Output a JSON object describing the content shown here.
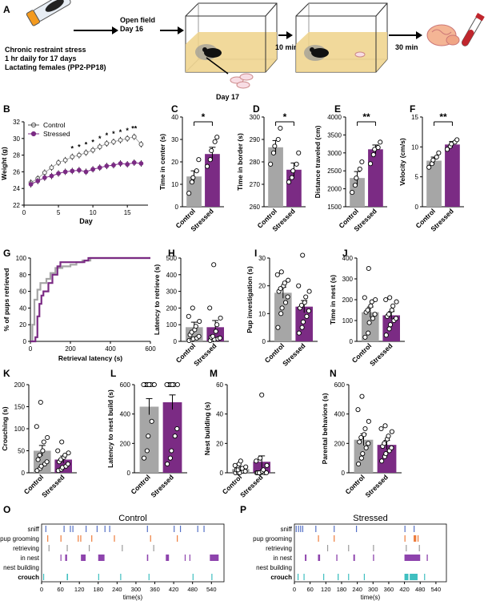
{
  "colors": {
    "control": "#a6a6a6",
    "stressed": "#7b2b84",
    "sniff": "#5470c6",
    "pup_grooming": "#ee7d3c",
    "retrieving": "#9b9b9b",
    "in_nest": "#8e44ad",
    "crouch": "#3fbfc0"
  },
  "panelA": {
    "letter": "A",
    "text_lines": [
      "Chronic restraint stress",
      "1 hr daily for 17 days",
      "Lactating females (PP2-PP18)"
    ],
    "open_field": [
      "Open field",
      "Day 16"
    ],
    "day17": "Day 17",
    "arrow1": "10 min",
    "arrow2": "30 min"
  },
  "chart_data": [
    {
      "id": "B",
      "letter": "B",
      "type": "line",
      "xlabel": "Day",
      "ylabel": "Weight (g)",
      "xlim": [
        0,
        18
      ],
      "ylim": [
        22,
        32
      ],
      "xticks": [
        0,
        5,
        10,
        15
      ],
      "yticks": [
        22,
        24,
        26,
        28,
        30,
        32
      ],
      "legend": [
        "Control",
        "Stressed"
      ],
      "x": [
        1,
        2,
        3,
        4,
        5,
        6,
        7,
        8,
        9,
        10,
        11,
        12,
        13,
        14,
        15,
        16,
        17
      ],
      "series": [
        {
          "name": "Control",
          "values": [
            24.7,
            25.2,
            25.9,
            26.5,
            27.1,
            27.4,
            27.8,
            28.0,
            28.3,
            28.6,
            29.0,
            29.4,
            29.6,
            29.8,
            30.0,
            30.2,
            29.3
          ]
        },
        {
          "name": "Stressed",
          "values": [
            24.5,
            24.9,
            25.3,
            25.5,
            25.8,
            26.0,
            26.1,
            26.2,
            26.0,
            26.3,
            26.5,
            26.7,
            26.8,
            27.0,
            26.9,
            27.1,
            27.0
          ]
        }
      ],
      "significance": [
        {
          "x": 7,
          "label": "*"
        },
        {
          "x": 8,
          "label": "*"
        },
        {
          "x": 9,
          "label": "*"
        },
        {
          "x": 10,
          "label": "*"
        },
        {
          "x": 11,
          "label": "*"
        },
        {
          "x": 12,
          "label": "*"
        },
        {
          "x": 13,
          "label": "*"
        },
        {
          "x": 14,
          "label": "*"
        },
        {
          "x": 15,
          "label": "*"
        },
        {
          "x": 16,
          "label": "**"
        }
      ]
    },
    {
      "id": "C",
      "letter": "C",
      "type": "bar",
      "ylabel": "Time in center (s)",
      "ylim": [
        0,
        40
      ],
      "yticks": [
        0,
        10,
        20,
        30,
        40
      ],
      "categories": [
        "Control",
        "Stressed"
      ],
      "values": [
        13.5,
        23.5
      ],
      "errors": [
        2.5,
        3.0
      ],
      "points": [
        [
          6,
          11,
          13,
          16,
          21
        ],
        [
          18,
          21,
          25,
          29,
          31
        ]
      ],
      "significance": "*"
    },
    {
      "id": "D",
      "letter": "D",
      "type": "bar",
      "ylabel": "Time in border (s)",
      "ylim": [
        260,
        300
      ],
      "yticks": [
        260,
        270,
        280,
        290,
        300
      ],
      "categories": [
        "Control",
        "Stressed"
      ],
      "values": [
        286.5,
        276.5
      ],
      "errors": [
        3.0,
        3.0
      ],
      "points": [
        [
          279,
          284,
          287,
          290,
          295
        ],
        [
          271,
          273,
          276,
          279,
          284
        ]
      ],
      "significance": "*"
    },
    {
      "id": "E",
      "letter": "E",
      "type": "bar",
      "ylabel": "Distance traveled (cm)",
      "ylim": [
        1500,
        4000
      ],
      "yticks": [
        1500,
        2000,
        2500,
        3000,
        3500,
        4000
      ],
      "categories": [
        "Control",
        "Stressed"
      ],
      "values": [
        2300,
        3100
      ],
      "errors": [
        180,
        120
      ],
      "points": [
        [
          1900,
          2100,
          2300,
          2550,
          2750
        ],
        [
          2700,
          2950,
          3100,
          3150,
          3300
        ]
      ],
      "significance": "**"
    },
    {
      "id": "F",
      "letter": "F",
      "type": "bar",
      "ylabel": "Velocity (cm/s)",
      "ylim": [
        0,
        15
      ],
      "yticks": [
        0,
        5,
        10,
        15
      ],
      "categories": [
        "Control",
        "Stressed"
      ],
      "values": [
        7.7,
        10.4
      ],
      "errors": [
        0.6,
        0.5
      ],
      "points": [
        [
          6.6,
          7.2,
          7.8,
          8.3,
          9.0
        ],
        [
          9.6,
          10.1,
          10.5,
          10.8,
          11.2
        ]
      ],
      "significance": "**"
    },
    {
      "id": "G",
      "letter": "G",
      "type": "line",
      "xlabel": "Retrieval latency (s)",
      "ylabel": "% of pups retrieved",
      "xlim": [
        0,
        600
      ],
      "ylim": [
        0,
        100
      ],
      "xticks": [
        0,
        200,
        400,
        600
      ],
      "yticks": [
        0,
        20,
        40,
        60,
        80,
        100
      ],
      "series": [
        {
          "name": "Control",
          "steps": [
            [
              0,
              0
            ],
            [
              10,
              20
            ],
            [
              20,
              50
            ],
            [
              35,
              62
            ],
            [
              50,
              70
            ],
            [
              80,
              75
            ],
            [
              100,
              82
            ],
            [
              125,
              88
            ],
            [
              160,
              90
            ],
            [
              200,
              92
            ],
            [
              230,
              95
            ],
            [
              260,
              97
            ],
            [
              300,
              100
            ],
            [
              600,
              100
            ]
          ]
        },
        {
          "name": "Stressed",
          "steps": [
            [
              0,
              0
            ],
            [
              25,
              5
            ],
            [
              35,
              30
            ],
            [
              45,
              45
            ],
            [
              55,
              55
            ],
            [
              65,
              60
            ],
            [
              90,
              70
            ],
            [
              110,
              80
            ],
            [
              135,
              90
            ],
            [
              150,
              95
            ],
            [
              270,
              97
            ],
            [
              290,
              100
            ],
            [
              600,
              100
            ]
          ]
        }
      ]
    },
    {
      "id": "H",
      "letter": "H",
      "type": "bar",
      "ylabel": "Latency to retrieve (s)",
      "ylim": [
        0,
        500
      ],
      "yticks": [
        0,
        100,
        200,
        300,
        400,
        500
      ],
      "categories": [
        "Control",
        "Stressed"
      ],
      "values": [
        85,
        85
      ],
      "errors": [
        30,
        40
      ],
      "points": [
        [
          5,
          10,
          15,
          20,
          30,
          40,
          55,
          70,
          90,
          120,
          150,
          200
        ],
        [
          5,
          10,
          12,
          15,
          20,
          25,
          30,
          60,
          100,
          140,
          200,
          460
        ]
      ]
    },
    {
      "id": "I",
      "letter": "I",
      "type": "bar",
      "ylabel": "Pup investigation (s)",
      "ylim": [
        0,
        30
      ],
      "yticks": [
        0,
        10,
        20,
        30
      ],
      "categories": [
        "Control",
        "Stressed"
      ],
      "values": [
        17.5,
        12.5
      ],
      "errors": [
        2.0,
        2.2
      ],
      "points": [
        [
          5,
          10,
          12,
          14,
          16,
          18,
          19,
          20,
          21,
          22,
          24,
          25
        ],
        [
          3,
          5,
          7,
          9,
          11,
          12,
          13,
          14,
          16,
          18,
          20,
          31
        ]
      ]
    },
    {
      "id": "J",
      "letter": "J",
      "type": "bar",
      "ylabel": "Time in nest (s)",
      "ylim": [
        0,
        400
      ],
      "yticks": [
        0,
        100,
        200,
        300,
        400
      ],
      "categories": [
        "Control",
        "Stressed"
      ],
      "values": [
        140,
        125
      ],
      "errors": [
        25,
        18
      ],
      "points": [
        [
          20,
          40,
          90,
          110,
          130,
          140,
          150,
          170,
          190,
          200,
          210,
          350
        ],
        [
          30,
          60,
          80,
          100,
          110,
          120,
          130,
          150,
          170,
          190,
          200,
          210
        ]
      ]
    },
    {
      "id": "K",
      "letter": "K",
      "type": "bar",
      "ylabel": "Crouching (s)",
      "ylim": [
        0,
        200
      ],
      "yticks": [
        0,
        50,
        100,
        150,
        200
      ],
      "categories": [
        "Control",
        "Stressed"
      ],
      "values": [
        50,
        30
      ],
      "errors": [
        12,
        8
      ],
      "points": [
        [
          5,
          10,
          15,
          20,
          25,
          30,
          40,
          50,
          70,
          80,
          105,
          160
        ],
        [
          5,
          8,
          12,
          15,
          20,
          25,
          30,
          35,
          40,
          45,
          50,
          70
        ]
      ]
    },
    {
      "id": "L",
      "letter": "L",
      "type": "bar",
      "ylabel": "Latency to nest build (s)",
      "ylim": [
        0,
        600
      ],
      "yticks": [
        0,
        200,
        400,
        600
      ],
      "categories": [
        "Control",
        "Stressed"
      ],
      "values": [
        450,
        480
      ],
      "errors": [
        55,
        50
      ],
      "points": [
        [
          100,
          150,
          250,
          350,
          600,
          600,
          600,
          600,
          600,
          600,
          600,
          600,
          600
        ],
        [
          60,
          100,
          150,
          250,
          300,
          600,
          600,
          600,
          600,
          600,
          600,
          600,
          600
        ]
      ]
    },
    {
      "id": "M",
      "letter": "M",
      "type": "bar",
      "ylabel": "Nest building (s)",
      "ylim": [
        0,
        60
      ],
      "yticks": [
        0,
        20,
        40,
        60
      ],
      "categories": [
        "Control",
        "Stressed"
      ],
      "values": [
        2.5,
        7.5
      ],
      "errors": [
        0.8,
        4.0
      ],
      "points": [
        [
          0,
          0,
          0,
          1,
          1,
          2,
          2,
          3,
          3,
          4,
          5,
          6,
          8
        ],
        [
          0,
          0,
          0,
          0,
          0,
          0,
          0,
          1,
          2,
          5,
          8,
          10,
          53
        ]
      ]
    },
    {
      "id": "N",
      "letter": "N",
      "type": "bar",
      "ylabel": "Parental behaviors (s)",
      "ylim": [
        0,
        600
      ],
      "yticks": [
        0,
        200,
        400,
        600
      ],
      "categories": [
        "Control",
        "Stressed"
      ],
      "values": [
        225,
        190
      ],
      "errors": [
        40,
        30
      ],
      "points": [
        [
          60,
          100,
          130,
          170,
          200,
          210,
          240,
          260,
          300,
          350,
          430,
          520
        ],
        [
          80,
          110,
          130,
          150,
          170,
          180,
          200,
          230,
          250,
          280,
          300,
          320
        ]
      ]
    }
  ],
  "ethograms": [
    {
      "id": "O",
      "letter": "O",
      "title": "Control",
      "xlabel": "time(s)",
      "xticks": [
        0,
        60,
        120,
        180,
        240,
        300,
        360,
        420,
        480,
        540
      ],
      "rows": [
        "sniff",
        "pup grooming",
        "retrieving",
        "in nest",
        "nest building",
        "crouch"
      ],
      "events": {
        "sniff": [
          [
            12,
            2
          ],
          [
            70,
            1
          ],
          [
            90,
            1
          ],
          [
            98,
            2
          ],
          [
            140,
            2
          ],
          [
            175,
            1
          ],
          [
            200,
            2
          ],
          [
            215,
            1
          ],
          [
            335,
            1
          ],
          [
            420,
            1
          ],
          [
            440,
            1
          ],
          [
            495,
            2
          ],
          [
            515,
            1
          ]
        ],
        "pup grooming": [
          [
            18,
            2
          ],
          [
            60,
            1
          ],
          [
            115,
            1
          ],
          [
            123,
            2
          ],
          [
            158,
            2
          ],
          [
            230,
            1
          ],
          [
            345,
            2
          ],
          [
            430,
            2
          ]
        ],
        "retrieving": [
          [
            22,
            1
          ],
          [
            80,
            1
          ],
          [
            150,
            1
          ],
          [
            255,
            1
          ],
          [
            355,
            1
          ]
        ],
        "in nest": [
          [
            60,
            3
          ],
          [
            75,
            6
          ],
          [
            125,
            15
          ],
          [
            180,
            20
          ],
          [
            335,
            4
          ],
          [
            395,
            10
          ],
          [
            455,
            3
          ],
          [
            470,
            3
          ],
          [
            535,
            28
          ]
        ],
        "nest building": [
          [
            0,
            0
          ]
        ],
        "crouch": [
          [
            5,
            3
          ],
          [
            80,
            4
          ],
          [
            180,
            3
          ],
          [
            250,
            2
          ],
          [
            340,
            2
          ],
          [
            480,
            3
          ],
          [
            540,
            2
          ]
        ]
      }
    },
    {
      "id": "P",
      "letter": "P",
      "title": "Stressed",
      "xlabel": "time(s)",
      "xticks": [
        0,
        60,
        120,
        180,
        240,
        300,
        360,
        420,
        480,
        540
      ],
      "rows": [
        "sniff",
        "pup grooming",
        "retrieving",
        "in nest",
        "nest building",
        "crouch"
      ],
      "events": {
        "sniff": [
          [
            5,
            3
          ],
          [
            14,
            2
          ],
          [
            22,
            3
          ],
          [
            30,
            2
          ],
          [
            80,
            1
          ],
          [
            150,
            1
          ],
          [
            235,
            1
          ],
          [
            420,
            1
          ],
          [
            455,
            1
          ]
        ],
        "pup grooming": [
          [
            90,
            2
          ],
          [
            150,
            1
          ],
          [
            420,
            2
          ],
          [
            455,
            10
          ],
          [
            470,
            2
          ]
        ],
        "retrieving": [
          [
            125,
            1
          ],
          [
            205,
            1
          ],
          [
            300,
            1
          ],
          [
            425,
            1
          ],
          [
            475,
            1
          ]
        ],
        "in nest": [
          [
            40,
            6
          ],
          [
            90,
            8
          ],
          [
            160,
            4
          ],
          [
            225,
            6
          ],
          [
            300,
            4
          ],
          [
            420,
            60
          ],
          [
            505,
            4
          ]
        ],
        "nest building": [
          [
            0,
            0
          ]
        ],
        "crouch": [
          [
            12,
            4
          ],
          [
            35,
            3
          ],
          [
            110,
            3
          ],
          [
            165,
            4
          ],
          [
            205,
            3
          ],
          [
            265,
            3
          ],
          [
            420,
            15
          ],
          [
            440,
            30
          ],
          [
            495,
            3
          ]
        ]
      }
    }
  ]
}
